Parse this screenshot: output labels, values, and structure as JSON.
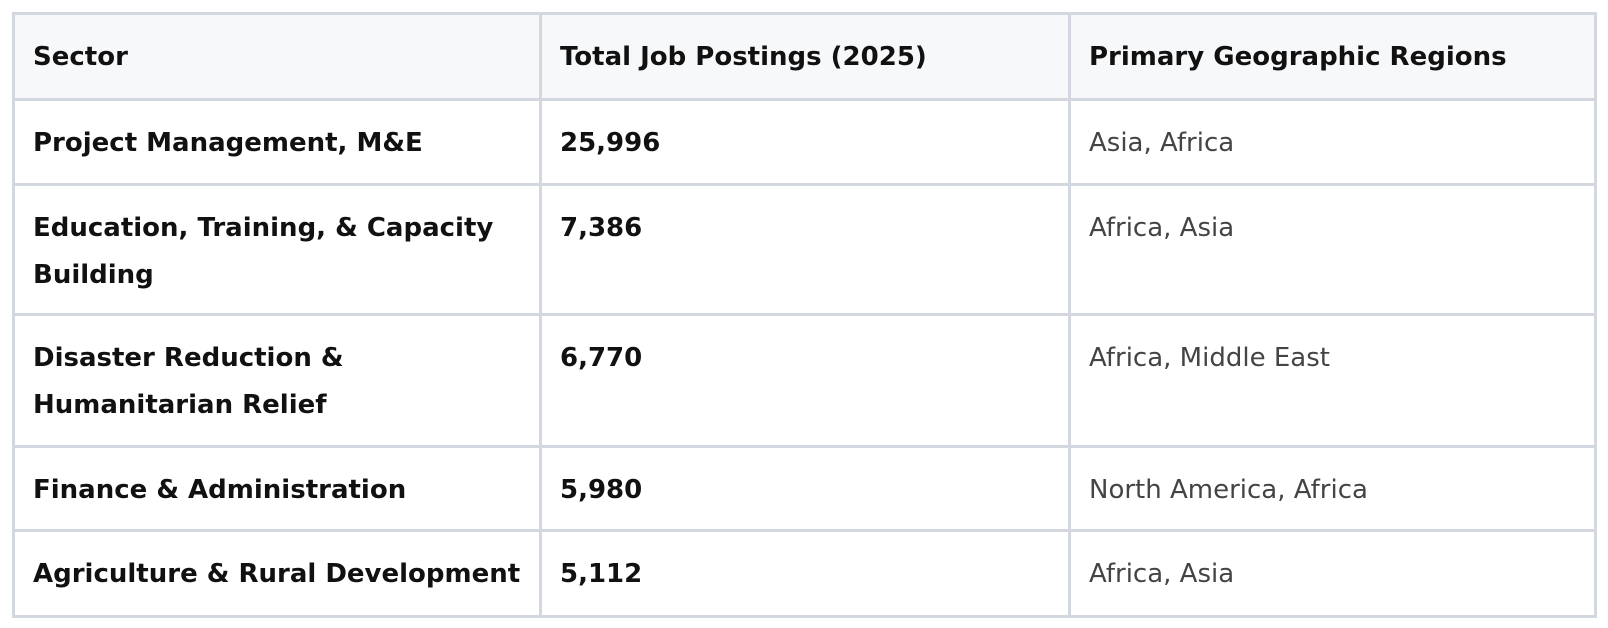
{
  "table": {
    "header": [
      "Sector",
      "Total Job Postings (2025)",
      "Primary Geographic Regions"
    ],
    "rows": [
      [
        "Project Management, M&E",
        "25,996",
        "Asia, Africa"
      ],
      [
        "Education, Training, & Capacity Building",
        "7,386",
        "Africa, Asia"
      ],
      [
        "Disaster Reduction & Humanitarian Relief",
        "6,770",
        "Africa, Middle East"
      ],
      [
        "Finance & Administration",
        "5,980",
        "North America, Africa"
      ],
      [
        "Agriculture & Rural Development",
        "5,112",
        "Africa, Asia"
      ]
    ]
  }
}
